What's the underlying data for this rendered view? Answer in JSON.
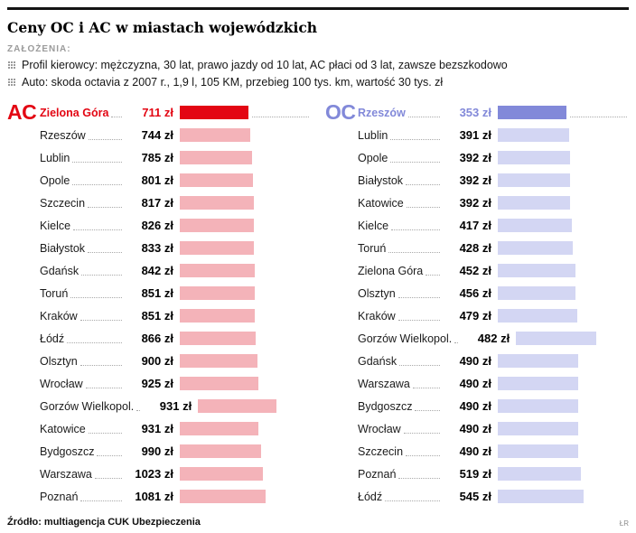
{
  "page": {
    "title": "Ceny OC i AC w miastach wojewódzkich",
    "assumptions_label": "ZAŁOŻENIA:",
    "assumptions": [
      "Profil kierowcy: mężczyzna, 30 lat, prawo jazdy od 10 lat, AC płaci od 3 lat, zawsze bezszkodowo",
      "Auto: skoda octavia z 2007 r., 1,9 l, 105 KM, przebieg 100 tys. km, wartość 30 tys. zł"
    ],
    "source": "Źródło: multiagencja CUK Ubezpieczenia",
    "credit": "ŁR"
  },
  "chart_data": [
    {
      "type": "bar",
      "name": "AC",
      "orientation": "horizontal",
      "unit": "zł",
      "accent_color": "#e30613",
      "bar_color": "#f4b3b9",
      "highlight_index": 0,
      "categories": [
        "Zielona Góra",
        "Rzeszów",
        "Lublin",
        "Opole",
        "Szczecin",
        "Kielce",
        "Białystok",
        "Gdańsk",
        "Toruń",
        "Kraków",
        "Łódź",
        "Olsztyn",
        "Wrocław",
        "Gorzów Wielkopol.",
        "Katowice",
        "Bydgoszcz",
        "Warszawa",
        "Poznań"
      ],
      "values": [
        711,
        744,
        785,
        801,
        817,
        826,
        833,
        842,
        851,
        851,
        866,
        900,
        925,
        931,
        931,
        990,
        1023,
        1081
      ]
    },
    {
      "type": "bar",
      "name": "OC",
      "orientation": "horizontal",
      "unit": "zł",
      "accent_color": "#8289d9",
      "bar_color": "#d3d6f3",
      "highlight_index": 0,
      "categories": [
        "Rzeszów",
        "Lublin",
        "Opole",
        "Białystok",
        "Katowice",
        "Kielce",
        "Toruń",
        "Zielona Góra",
        "Olsztyn",
        "Kraków",
        "Gorzów Wielkopol.",
        "Gdańsk",
        "Warszawa",
        "Bydgoszcz",
        "Wrocław",
        "Szczecin",
        "Poznań",
        "Łódź"
      ],
      "values": [
        353,
        391,
        392,
        392,
        392,
        417,
        428,
        452,
        456,
        479,
        482,
        490,
        490,
        490,
        490,
        490,
        519,
        545
      ]
    }
  ]
}
